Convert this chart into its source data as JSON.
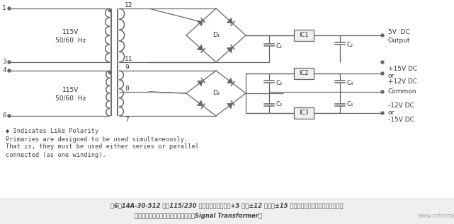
{
  "bg_color": "#ffffff",
  "line_color": "#666666",
  "text_color": "#333333",
  "caption_color": "#555555",
  "title_line1": "图6：14A-30-512 采用115/230 伏输入电压，适用于+5 伏或±12 伏直流±15 伏直流电源，具体取决于用户如何",
  "title_line2": "连接初级和次级侧绕组。（图片来源：Signal Transformer）",
  "url_text": "www.cntronics.com",
  "note_line1": "◆ Indicates Like Polarity",
  "note_line2": "Primaries are designed to be used simultaneously.",
  "note_line3": "That is, they must be used either series or parallel",
  "note_line4": "connected (as one winding).",
  "label_115V": "115V",
  "label_50_60Hz": "50/60  Hz",
  "figsize": [
    6.41,
    3.17
  ],
  "dpi": 100
}
